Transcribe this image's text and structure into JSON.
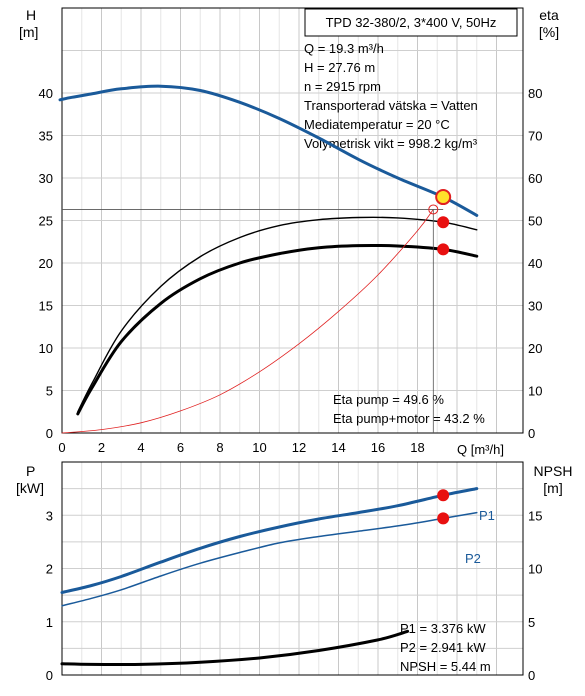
{
  "chart_data": [
    {
      "type": "line",
      "title": "TPD 32-380/2, 3*400 V, 50Hz",
      "left_axis": {
        "label": "H",
        "unit": "[m]",
        "ylim": [
          0,
          50
        ],
        "ticks": [
          "0",
          "5",
          "10",
          "15",
          "20",
          "25",
          "30",
          "35",
          "40"
        ]
      },
      "right_axis": {
        "label": "eta",
        "unit": "[%]",
        "ylim": [
          0,
          100
        ],
        "ticks": [
          "0",
          "10",
          "20",
          "30",
          "40",
          "50",
          "60",
          "70",
          "80"
        ]
      },
      "x_axis": {
        "label": "Q [m³/h]",
        "xlim": [
          0,
          23
        ],
        "ticks": [
          "0",
          "2",
          "4",
          "6",
          "8",
          "10",
          "12",
          "14",
          "16",
          "18"
        ]
      },
      "info_lines": [
        "Q = 19.3 m³/h",
        "H = 27.76 m",
        "n = 2915 rpm",
        "Transporterad vätska = Vatten",
        "Mediatemperatur = 20 °C",
        "Volymetrisk vikt = 998.2 kg/m³"
      ],
      "eta_lines": [
        "Eta pump = 49.6 %",
        "Eta pump+motor = 43.2 %"
      ],
      "series": [
        {
          "axis": "left",
          "color": "#1a5a9a",
          "x": [
            -0.1,
            0.5,
            1.5,
            3,
            5,
            7,
            9,
            11,
            13,
            15,
            17,
            19.3,
            21
          ],
          "y": [
            39.2,
            39.5,
            39.9,
            40.5,
            40.8,
            40.3,
            38.9,
            37.0,
            34.7,
            32.2,
            30.0,
            27.76,
            25.6
          ]
        },
        {
          "axis": "right",
          "color": "#000000",
          "x": [
            0.8,
            1.5,
            3,
            5,
            7,
            9,
            11,
            13,
            15,
            17,
            19.3,
            21
          ],
          "y": [
            5.0,
            11.5,
            24,
            34.5,
            41.5,
            46,
            48.8,
            50.2,
            50.7,
            50.6,
            49.6,
            47.8
          ]
        },
        {
          "axis": "right",
          "color": "#000000",
          "x": [
            0.8,
            1.5,
            3,
            5,
            7,
            9,
            11,
            13,
            15,
            17,
            19.3,
            21
          ],
          "y": [
            4.5,
            10.5,
            21.5,
            30.5,
            36.3,
            40.0,
            42.2,
            43.6,
            44.1,
            44.0,
            43.2,
            41.6
          ]
        },
        {
          "axis": "left",
          "color": "#e02020",
          "x": [
            0,
            2,
            4,
            6,
            8,
            10,
            12,
            14,
            16,
            18,
            18.8
          ],
          "y": [
            0,
            0.4,
            1.2,
            2.6,
            4.5,
            7.2,
            10.5,
            14.3,
            18.6,
            23.8,
            26.3
          ]
        }
      ],
      "operating_points": [
        {
          "x": 19.3,
          "y": 27.76,
          "axis": "left"
        },
        {
          "x": 19.3,
          "y": 49.6,
          "axis": "right"
        },
        {
          "x": 19.3,
          "y": 43.2,
          "axis": "right"
        }
      ]
    },
    {
      "type": "line",
      "left_axis": {
        "label": "P",
        "unit": "[kW]",
        "ylim": [
          0,
          4
        ],
        "ticks": [
          "0",
          "1",
          "2",
          "3"
        ]
      },
      "right_axis": {
        "label": "NPSH",
        "unit": "[m]",
        "ylim": [
          0,
          20
        ],
        "ticks": [
          "0",
          "5",
          "10",
          "15"
        ]
      },
      "x_axis": {
        "xlim": [
          0,
          23
        ]
      },
      "series": [
        {
          "name": "P1",
          "axis": "left",
          "color": "#1a5a9a",
          "x": [
            0,
            1.5,
            3,
            5,
            7,
            9,
            11,
            13,
            15,
            17,
            19.3,
            21
          ],
          "y": [
            1.55,
            1.68,
            1.85,
            2.12,
            2.38,
            2.6,
            2.78,
            2.93,
            3.05,
            3.18,
            3.376,
            3.5
          ]
        },
        {
          "name": "P2",
          "axis": "left",
          "color": "#1a5a9a",
          "x": [
            0,
            1.5,
            3,
            5,
            7,
            9,
            11,
            13,
            15,
            17,
            19.3,
            21
          ],
          "y": [
            1.3,
            1.44,
            1.6,
            1.86,
            2.1,
            2.3,
            2.48,
            2.6,
            2.7,
            2.8,
            2.941,
            3.05
          ]
        },
        {
          "axis": "right",
          "color": "#000000",
          "x": [
            0,
            1.5,
            4,
            7,
            10,
            13,
            16,
            17.5
          ],
          "y": [
            1.05,
            1.0,
            1.0,
            1.2,
            1.6,
            2.3,
            3.3,
            4.1
          ]
        }
      ],
      "operating_points": [
        {
          "x": 19.3,
          "y": 3.376,
          "axis": "left"
        },
        {
          "x": 19.3,
          "y": 2.941,
          "axis": "left"
        }
      ],
      "info_lines": [
        "P1 = 3.376 kW",
        "P2 = 2.941 kW",
        "NPSH = 5.44 m"
      ]
    }
  ]
}
